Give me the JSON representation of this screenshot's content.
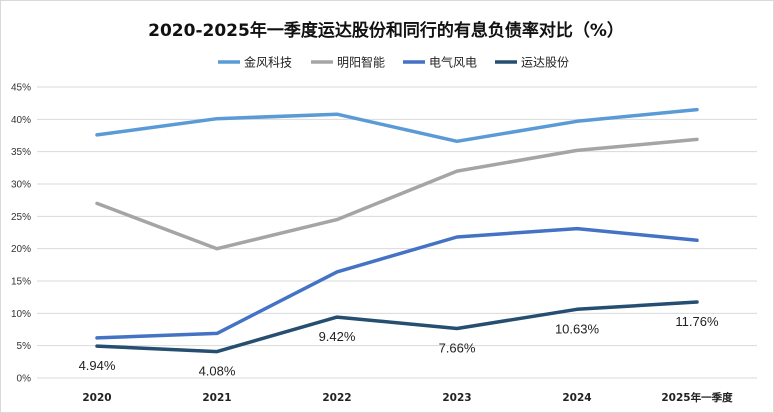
{
  "chart_data": {
    "type": "line",
    "title": "2020-2025年一季度运达股份和同行的有息负债率对比（%）",
    "categories": [
      "2020",
      "2021",
      "2022",
      "2023",
      "2024",
      "2025年一季度"
    ],
    "ylim": [
      0,
      45
    ],
    "yticks": [
      "0%",
      "5%",
      "10%",
      "15%",
      "20%",
      "25%",
      "30%",
      "35%",
      "40%",
      "45%"
    ],
    "grid": true,
    "legend_position": "top",
    "series": [
      {
        "name": "金风科技",
        "color": "#5b9bd5",
        "values": [
          37.6,
          40.1,
          40.8,
          36.6,
          39.7,
          41.5
        ],
        "labels": null
      },
      {
        "name": "明阳智能",
        "color": "#a5a5a5",
        "values": [
          27.0,
          20.0,
          24.5,
          32.0,
          35.2,
          36.9
        ],
        "labels": null
      },
      {
        "name": "电气风电",
        "color": "#4472c4",
        "values": [
          6.2,
          6.9,
          16.4,
          21.8,
          23.1,
          21.3
        ],
        "labels": null
      },
      {
        "name": "运达股份",
        "color": "#264e70",
        "values": [
          4.94,
          4.08,
          9.42,
          7.66,
          10.63,
          11.76
        ],
        "labels": [
          "4.94%",
          "4.08%",
          "9.42%",
          "7.66%",
          "10.63%",
          "11.76%"
        ]
      }
    ]
  }
}
